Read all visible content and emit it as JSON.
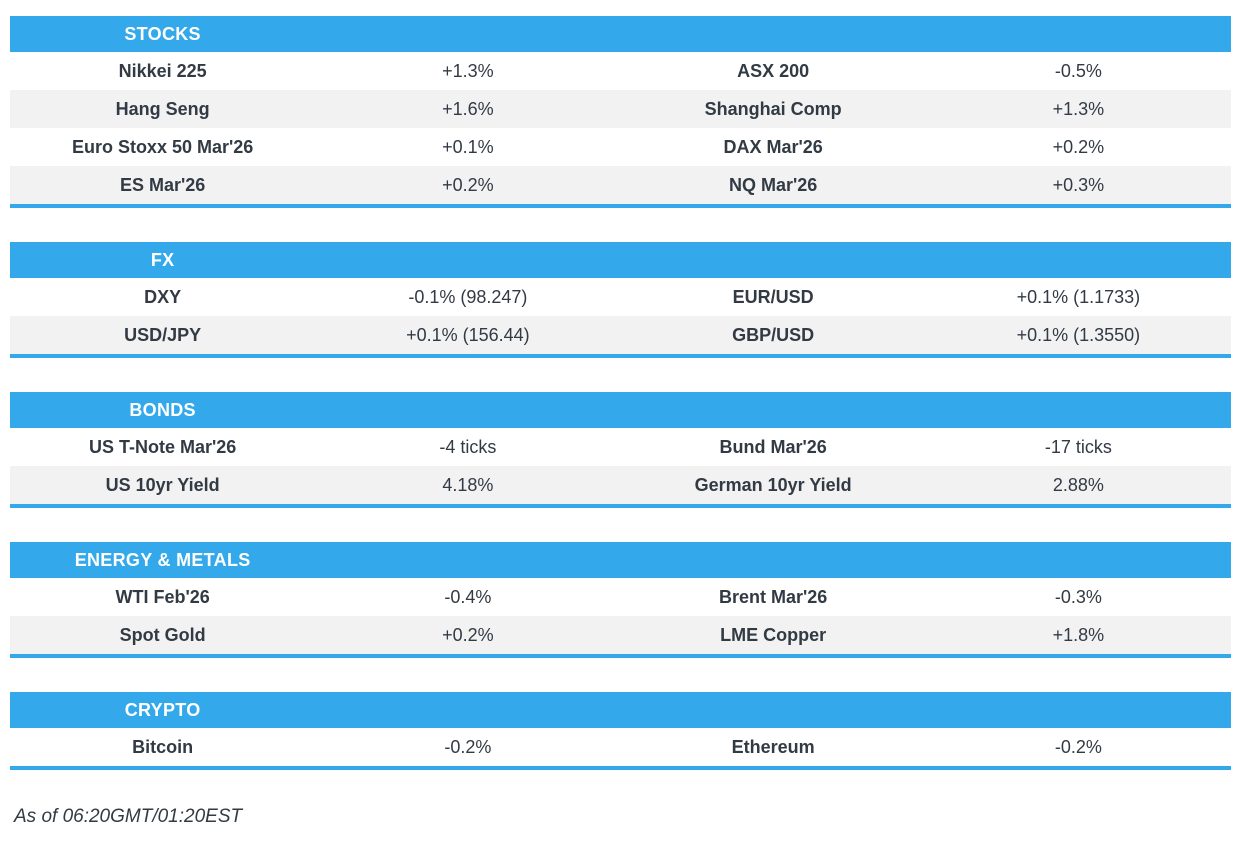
{
  "colors": {
    "header_blue": "#33a9ec",
    "stripe_gray": "#f2f2f3",
    "text_dark": "#323a44"
  },
  "sections": [
    {
      "id": "stocks",
      "title": "STOCKS",
      "rows": [
        {
          "cells": [
            "Nikkei 225",
            "+1.3%",
            "ASX 200",
            "-0.5%"
          ]
        },
        {
          "cells": [
            "Hang Seng",
            "+1.6%",
            "Shanghai Comp",
            "+1.3%"
          ]
        },
        {
          "cells": [
            "Euro Stoxx 50 Mar'26",
            "+0.1%",
            "DAX Mar'26",
            "+0.2%"
          ]
        },
        {
          "cells": [
            "ES Mar'26",
            "+0.2%",
            "NQ Mar'26",
            "+0.3%"
          ]
        }
      ]
    },
    {
      "id": "fx",
      "title": "FX",
      "rows": [
        {
          "cells": [
            "DXY",
            "-0.1% (98.247)",
            "EUR/USD",
            "+0.1% (1.1733)"
          ]
        },
        {
          "cells": [
            "USD/JPY",
            "+0.1% (156.44)",
            "GBP/USD",
            "+0.1% (1.3550)"
          ]
        }
      ]
    },
    {
      "id": "bonds",
      "title": "BONDS",
      "rows": [
        {
          "cells": [
            "US T-Note Mar'26",
            "-4 ticks",
            "Bund Mar'26",
            "-17 ticks"
          ]
        },
        {
          "cells": [
            "US 10yr Yield",
            "4.18%",
            "German 10yr Yield",
            "2.88%"
          ]
        }
      ]
    },
    {
      "id": "energy-metals",
      "title": "ENERGY & METALS",
      "rows": [
        {
          "cells": [
            "WTI Feb'26",
            "-0.4%",
            "Brent Mar'26",
            "-0.3%"
          ]
        },
        {
          "cells": [
            "Spot Gold",
            "+0.2%",
            "LME Copper",
            "+1.8%"
          ]
        }
      ]
    },
    {
      "id": "crypto",
      "title": "CRYPTO",
      "rows": [
        {
          "cells": [
            "Bitcoin",
            "-0.2%",
            "Ethereum",
            "-0.2%"
          ]
        }
      ]
    }
  ],
  "footer": {
    "as_of": "As of 06:20GMT/01:20EST"
  }
}
